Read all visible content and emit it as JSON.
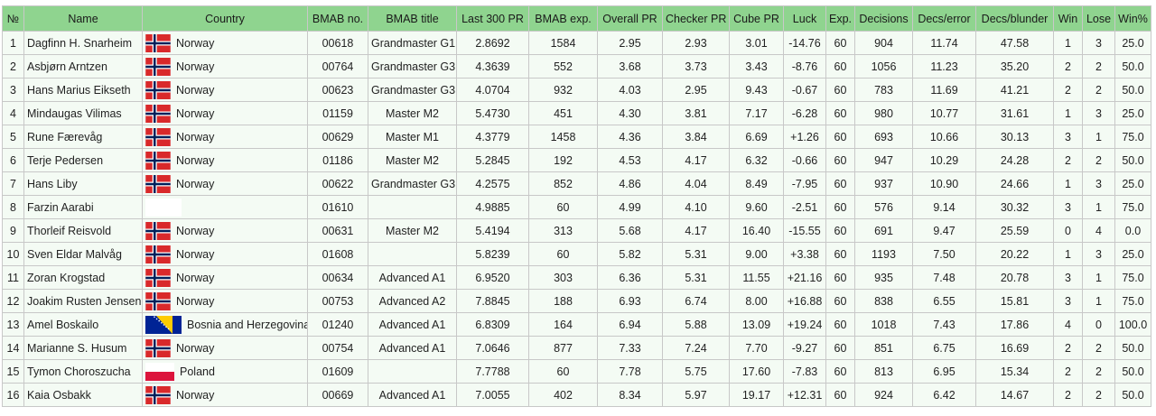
{
  "table": {
    "headers": [
      "№",
      "Name",
      "Country",
      "BMAB no.",
      "BMAB title",
      "Last 300 PR",
      "BMAB exp.",
      "Overall PR",
      "Checker PR",
      "Cube PR",
      "Luck",
      "Exp.",
      "Decisions",
      "Decs/error",
      "Decs/blunder",
      "Win",
      "Lose",
      "Win%"
    ],
    "rows": [
      {
        "no": "1",
        "name": "Dagfinn H. Snarheim",
        "flag": "norway-flag-icon",
        "country": "Norway",
        "bmab_no": "00618",
        "bmab_title": "Grandmaster G1",
        "last300": "2.8692",
        "bmab_exp": "1584",
        "overall": "2.95",
        "checker": "2.93",
        "cube": "3.01",
        "luck": "-14.76",
        "exp": "60",
        "decisions": "904",
        "decs_error": "11.74",
        "decs_blunder": "47.58",
        "win": "1",
        "lose": "3",
        "winpct": "25.0"
      },
      {
        "no": "2",
        "name": "Asbjørn Arntzen",
        "flag": "norway-flag-icon",
        "country": "Norway",
        "bmab_no": "00764",
        "bmab_title": "Grandmaster G3",
        "last300": "4.3639",
        "bmab_exp": "552",
        "overall": "3.68",
        "checker": "3.73",
        "cube": "3.43",
        "luck": "-8.76",
        "exp": "60",
        "decisions": "1056",
        "decs_error": "11.23",
        "decs_blunder": "35.20",
        "win": "2",
        "lose": "2",
        "winpct": "50.0"
      },
      {
        "no": "3",
        "name": "Hans Marius Eikseth",
        "flag": "norway-flag-icon",
        "country": "Norway",
        "bmab_no": "00623",
        "bmab_title": "Grandmaster G3",
        "last300": "4.0704",
        "bmab_exp": "932",
        "overall": "4.03",
        "checker": "2.95",
        "cube": "9.43",
        "luck": "-0.67",
        "exp": "60",
        "decisions": "783",
        "decs_error": "11.69",
        "decs_blunder": "41.21",
        "win": "2",
        "lose": "2",
        "winpct": "50.0"
      },
      {
        "no": "4",
        "name": "Mindaugas Vilimas",
        "flag": "norway-flag-icon",
        "country": "Norway",
        "bmab_no": "01159",
        "bmab_title": "Master M2",
        "last300": "5.4730",
        "bmab_exp": "451",
        "overall": "4.30",
        "checker": "3.81",
        "cube": "7.17",
        "luck": "-6.28",
        "exp": "60",
        "decisions": "980",
        "decs_error": "10.77",
        "decs_blunder": "31.61",
        "win": "1",
        "lose": "3",
        "winpct": "25.0"
      },
      {
        "no": "5",
        "name": "Rune Færevåg",
        "flag": "norway-flag-icon",
        "country": "Norway",
        "bmab_no": "00629",
        "bmab_title": "Master M1",
        "last300": "4.3779",
        "bmab_exp": "1458",
        "overall": "4.36",
        "checker": "3.84",
        "cube": "6.69",
        "luck": "+1.26",
        "exp": "60",
        "decisions": "693",
        "decs_error": "10.66",
        "decs_blunder": "30.13",
        "win": "3",
        "lose": "1",
        "winpct": "75.0"
      },
      {
        "no": "6",
        "name": "Terje Pedersen",
        "flag": "norway-flag-icon",
        "country": "Norway",
        "bmab_no": "01186",
        "bmab_title": "Master M2",
        "last300": "5.2845",
        "bmab_exp": "192",
        "overall": "4.53",
        "checker": "4.17",
        "cube": "6.32",
        "luck": "-0.66",
        "exp": "60",
        "decisions": "947",
        "decs_error": "10.29",
        "decs_blunder": "24.28",
        "win": "2",
        "lose": "2",
        "winpct": "50.0"
      },
      {
        "no": "7",
        "name": "Hans Liby",
        "flag": "norway-flag-icon",
        "country": "Norway",
        "bmab_no": "00622",
        "bmab_title": "Grandmaster G3",
        "last300": "4.2575",
        "bmab_exp": "852",
        "overall": "4.86",
        "checker": "4.04",
        "cube": "8.49",
        "luck": "-7.95",
        "exp": "60",
        "decisions": "937",
        "decs_error": "10.90",
        "decs_blunder": "24.66",
        "win": "1",
        "lose": "3",
        "winpct": "25.0"
      },
      {
        "no": "8",
        "name": "Farzin Aarabi",
        "flag": "blank-flag-icon",
        "country": "",
        "bmab_no": "01610",
        "bmab_title": "",
        "last300": "4.9885",
        "bmab_exp": "60",
        "overall": "4.99",
        "checker": "4.10",
        "cube": "9.60",
        "luck": "-2.51",
        "exp": "60",
        "decisions": "576",
        "decs_error": "9.14",
        "decs_blunder": "30.32",
        "win": "3",
        "lose": "1",
        "winpct": "75.0"
      },
      {
        "no": "9",
        "name": "Thorleif Reisvold",
        "flag": "norway-flag-icon",
        "country": "Norway",
        "bmab_no": "00631",
        "bmab_title": "Master M2",
        "last300": "5.4194",
        "bmab_exp": "313",
        "overall": "5.68",
        "checker": "4.17",
        "cube": "16.40",
        "luck": "-15.55",
        "exp": "60",
        "decisions": "691",
        "decs_error": "9.47",
        "decs_blunder": "25.59",
        "win": "0",
        "lose": "4",
        "winpct": "0.0"
      },
      {
        "no": "10",
        "name": "Sven Eldar Malvåg",
        "flag": "norway-flag-icon",
        "country": "Norway",
        "bmab_no": "01608",
        "bmab_title": "",
        "last300": "5.8239",
        "bmab_exp": "60",
        "overall": "5.82",
        "checker": "5.31",
        "cube": "9.00",
        "luck": "+3.38",
        "exp": "60",
        "decisions": "1193",
        "decs_error": "7.50",
        "decs_blunder": "20.22",
        "win": "1",
        "lose": "3",
        "winpct": "25.0"
      },
      {
        "no": "11",
        "name": "Zoran Krogstad",
        "flag": "norway-flag-icon",
        "country": "Norway",
        "bmab_no": "00634",
        "bmab_title": "Advanced A1",
        "last300": "6.9520",
        "bmab_exp": "303",
        "overall": "6.36",
        "checker": "5.31",
        "cube": "11.55",
        "luck": "+21.16",
        "exp": "60",
        "decisions": "935",
        "decs_error": "7.48",
        "decs_blunder": "20.78",
        "win": "3",
        "lose": "1",
        "winpct": "75.0"
      },
      {
        "no": "12",
        "name": "Joakim Rusten Jensen",
        "flag": "norway-flag-icon",
        "country": "Norway",
        "bmab_no": "00753",
        "bmab_title": "Advanced A2",
        "last300": "7.8845",
        "bmab_exp": "188",
        "overall": "6.93",
        "checker": "6.74",
        "cube": "8.00",
        "luck": "+16.88",
        "exp": "60",
        "decisions": "838",
        "decs_error": "6.55",
        "decs_blunder": "15.81",
        "win": "3",
        "lose": "1",
        "winpct": "75.0"
      },
      {
        "no": "13",
        "name": "Amel Boskailo",
        "flag": "bosnia-flag-icon",
        "country": "Bosnia and Herzegovina",
        "bmab_no": "01240",
        "bmab_title": "Advanced A1",
        "last300": "6.8309",
        "bmab_exp": "164",
        "overall": "6.94",
        "checker": "5.88",
        "cube": "13.09",
        "luck": "+19.24",
        "exp": "60",
        "decisions": "1018",
        "decs_error": "7.43",
        "decs_blunder": "17.86",
        "win": "4",
        "lose": "0",
        "winpct": "100.0"
      },
      {
        "no": "14",
        "name": "Marianne S. Husum",
        "flag": "norway-flag-icon",
        "country": "Norway",
        "bmab_no": "00754",
        "bmab_title": "Advanced A1",
        "last300": "7.0646",
        "bmab_exp": "877",
        "overall": "7.33",
        "checker": "7.24",
        "cube": "7.70",
        "luck": "-9.27",
        "exp": "60",
        "decisions": "851",
        "decs_error": "6.75",
        "decs_blunder": "16.69",
        "win": "2",
        "lose": "2",
        "winpct": "50.0"
      },
      {
        "no": "15",
        "name": "Tymon Choroszucha",
        "flag": "poland-flag-icon",
        "country": "Poland",
        "bmab_no": "01609",
        "bmab_title": "",
        "last300": "7.7788",
        "bmab_exp": "60",
        "overall": "7.78",
        "checker": "5.75",
        "cube": "17.60",
        "luck": "-7.83",
        "exp": "60",
        "decisions": "813",
        "decs_error": "6.95",
        "decs_blunder": "15.34",
        "win": "2",
        "lose": "2",
        "winpct": "50.0"
      },
      {
        "no": "16",
        "name": "Kaia Osbakk",
        "flag": "norway-flag-icon",
        "country": "Norway",
        "bmab_no": "00669",
        "bmab_title": "Advanced A1",
        "last300": "7.0055",
        "bmab_exp": "402",
        "overall": "8.34",
        "checker": "5.97",
        "cube": "19.17",
        "luck": "+12.31",
        "exp": "60",
        "decisions": "924",
        "decs_error": "6.42",
        "decs_blunder": "14.67",
        "win": "2",
        "lose": "2",
        "winpct": "50.0"
      }
    ]
  },
  "colors": {
    "header_bg": "#8fd48f",
    "row_bg": "#f4fbf4",
    "border": "#c8c8c8",
    "norway_red": "#d9292b",
    "norway_blue": "#00205b",
    "bosnia_blue": "#002395",
    "bosnia_yellow": "#fecb00",
    "poland_red": "#dc143c"
  }
}
